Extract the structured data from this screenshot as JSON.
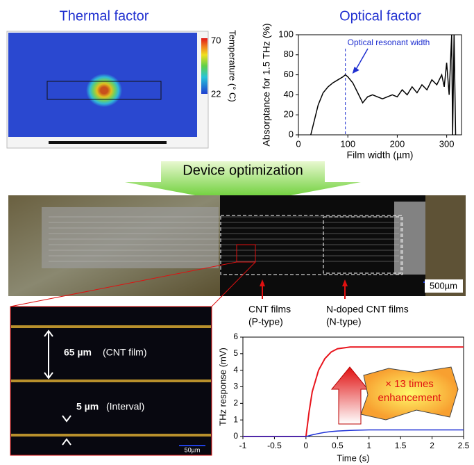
{
  "thermal": {
    "title": "Thermal factor",
    "colorbar_label": "Temperature (° C)",
    "colorbar_ticks": [
      70,
      22
    ]
  },
  "optimization_label": "Device optimization",
  "device": {
    "scale_label": "500µm",
    "p_label": "CNT films",
    "p_type": "(P-type)",
    "n_label": "N-doped CNT films",
    "n_type": "(N-type)"
  },
  "micrograph": {
    "film_width": "65 µm",
    "film_label": "(CNT film)",
    "interval_width": "5 µm",
    "interval_label": "(Interval)",
    "scale_label": "50µm"
  },
  "chart_data": [
    {
      "type": "line",
      "title": "Optical factor",
      "x_label": "Film width (µm)",
      "y_label": "Absorptance for 1.5 THz (%)",
      "annotation": "Optical resonant width",
      "annotation_x": 95,
      "xlim": [
        0,
        330
      ],
      "xticks": [
        0,
        100,
        200,
        300
      ],
      "ylim": [
        0,
        100
      ],
      "yticks": [
        0,
        20,
        40,
        60,
        80,
        100
      ],
      "series": [
        {
          "color": "#000000",
          "x": [
            25,
            40,
            50,
            60,
            70,
            80,
            90,
            95,
            100,
            110,
            120,
            130,
            140,
            150,
            170,
            190,
            200,
            210,
            220,
            230,
            240,
            250,
            260,
            270,
            280,
            290,
            295,
            300,
            305,
            310,
            312,
            315,
            318
          ],
          "values": [
            0,
            30,
            42,
            48,
            52,
            55,
            58,
            60,
            58,
            52,
            42,
            32,
            38,
            40,
            36,
            40,
            38,
            45,
            40,
            48,
            42,
            50,
            45,
            55,
            50,
            60,
            48,
            72,
            40,
            100,
            0,
            100,
            0
          ]
        }
      ]
    },
    {
      "type": "line",
      "x_label": "Time (s)",
      "y_label": "THz response (mV)",
      "annotation_lines": [
        "× 13 times",
        "enhancement"
      ],
      "xlim": [
        -1,
        2.5
      ],
      "xticks": [
        -1,
        -0.5,
        0,
        0.5,
        1,
        1.5,
        2,
        2.5
      ],
      "ylim": [
        0,
        6
      ],
      "yticks": [
        0,
        1,
        2,
        3,
        4,
        5,
        6
      ],
      "series": [
        {
          "color": "#e8141c",
          "x": [
            -1,
            -0.5,
            0,
            0.05,
            0.1,
            0.2,
            0.3,
            0.4,
            0.5,
            0.7,
            1,
            1.5,
            2,
            2.5
          ],
          "values": [
            0,
            0,
            0,
            1.5,
            2.7,
            4,
            4.7,
            5.1,
            5.3,
            5.4,
            5.4,
            5.4,
            5.4,
            5.4
          ]
        },
        {
          "color": "#1c2fd6",
          "x": [
            -1,
            -0.5,
            0,
            0.05,
            0.1,
            0.2,
            0.3,
            0.4,
            0.5,
            0.7,
            1,
            1.5,
            2,
            2.5
          ],
          "values": [
            0,
            0,
            0,
            0.05,
            0.1,
            0.18,
            0.25,
            0.3,
            0.33,
            0.37,
            0.4,
            0.4,
            0.4,
            0.4
          ]
        }
      ]
    }
  ]
}
